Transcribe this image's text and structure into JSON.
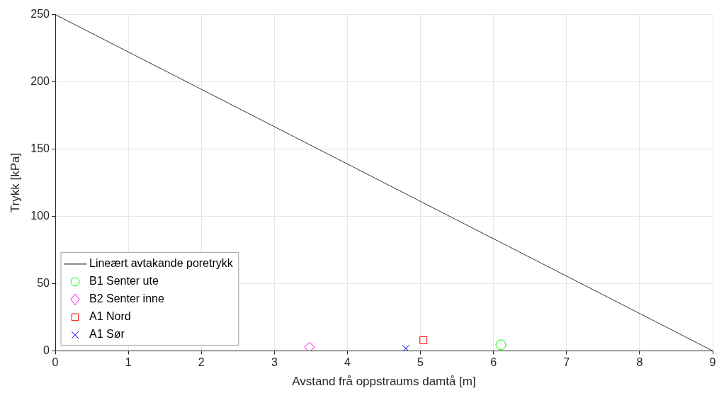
{
  "chart_data": {
    "type": "scatter",
    "xlabel": "Avstand frå oppstraums damtå [m]",
    "ylabel": "Trykk [kPa]",
    "xlim": [
      0,
      9
    ],
    "xticks": [
      0,
      1,
      2,
      3,
      4,
      5,
      6,
      7,
      8,
      9
    ],
    "ylim": [
      0,
      250
    ],
    "yticks": [
      0,
      50,
      100,
      150,
      200,
      250
    ],
    "grid": true,
    "legend": "bottom left",
    "series": [
      {
        "name": "Lineært avtakande poretrykk",
        "type": "line",
        "color": "#000000",
        "marker": "none",
        "line_style": "solid",
        "x": [
          0,
          9
        ],
        "values": [
          250,
          0
        ]
      },
      {
        "name": "B1 Senter ute",
        "type": "scatter",
        "color": "#00ff00",
        "marker": "circle",
        "x": [
          6.1
        ],
        "values": [
          4.5
        ]
      },
      {
        "name": "B2 Senter inne",
        "type": "scatter",
        "color": "#ff00ff",
        "marker": "diamond",
        "x": [
          3.48
        ],
        "values": [
          2.7
        ]
      },
      {
        "name": "A1 Nord",
        "type": "scatter",
        "color": "#ff0000",
        "marker": "square",
        "x": [
          5.04
        ],
        "values": [
          7.9
        ]
      },
      {
        "name": "A1 Sør",
        "type": "scatter",
        "color": "#0000ff",
        "marker": "cross",
        "x": [
          4.8
        ],
        "values": [
          1.8
        ]
      }
    ]
  }
}
